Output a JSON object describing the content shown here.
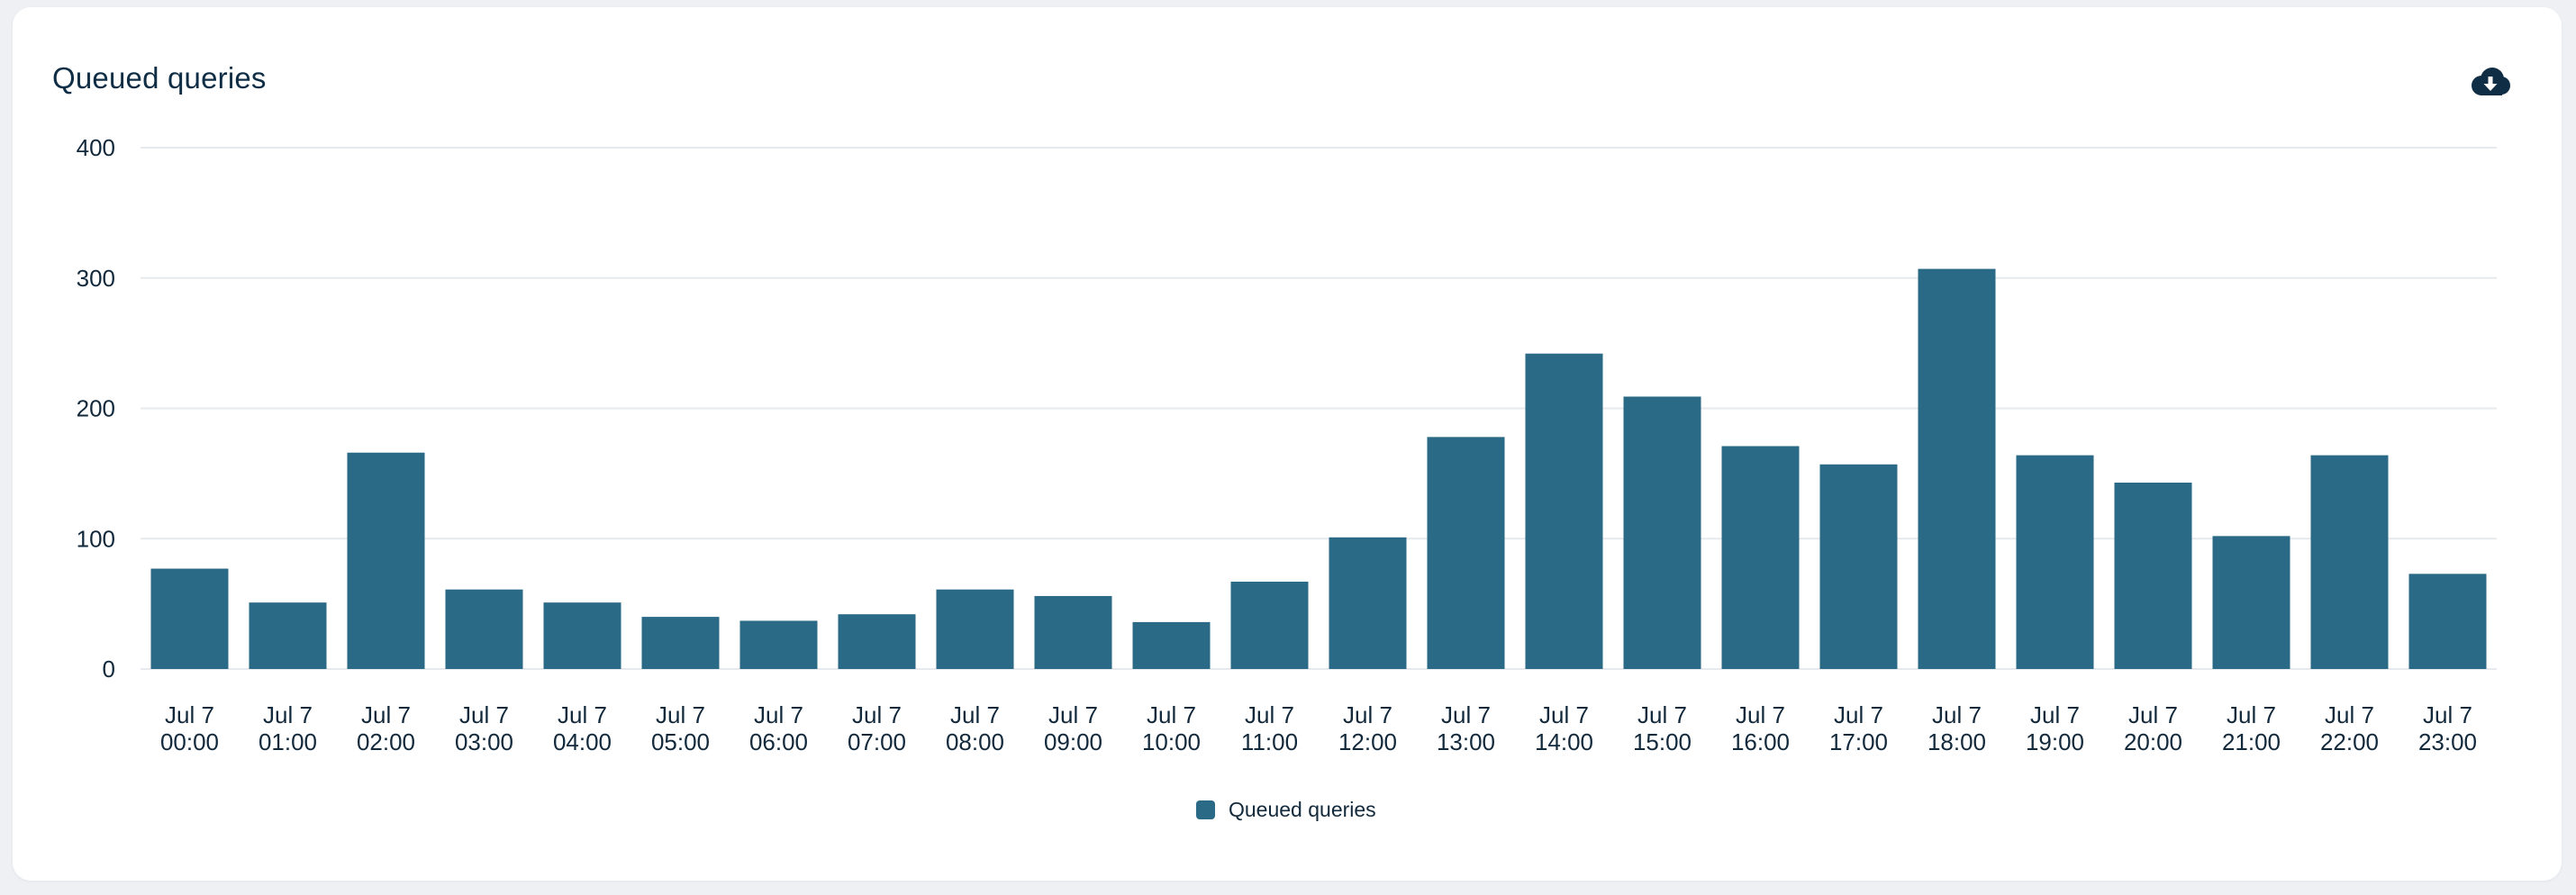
{
  "card": {
    "title": "Queued queries",
    "download_icon": "cloud-download-icon",
    "icon_color": "#0f2d45"
  },
  "chart_data": {
    "type": "bar",
    "title": "Queued queries",
    "xlabel": "",
    "ylabel": "",
    "ylim": [
      0,
      400
    ],
    "yticks": [
      0,
      100,
      200,
      300,
      400
    ],
    "grid": true,
    "legend_position": "bottom-center",
    "categories": [
      [
        "Jul 7",
        "00:00"
      ],
      [
        "Jul 7",
        "01:00"
      ],
      [
        "Jul 7",
        "02:00"
      ],
      [
        "Jul 7",
        "03:00"
      ],
      [
        "Jul 7",
        "04:00"
      ],
      [
        "Jul 7",
        "05:00"
      ],
      [
        "Jul 7",
        "06:00"
      ],
      [
        "Jul 7",
        "07:00"
      ],
      [
        "Jul 7",
        "08:00"
      ],
      [
        "Jul 7",
        "09:00"
      ],
      [
        "Jul 7",
        "10:00"
      ],
      [
        "Jul 7",
        "11:00"
      ],
      [
        "Jul 7",
        "12:00"
      ],
      [
        "Jul 7",
        "13:00"
      ],
      [
        "Jul 7",
        "14:00"
      ],
      [
        "Jul 7",
        "15:00"
      ],
      [
        "Jul 7",
        "16:00"
      ],
      [
        "Jul 7",
        "17:00"
      ],
      [
        "Jul 7",
        "18:00"
      ],
      [
        "Jul 7",
        "19:00"
      ],
      [
        "Jul 7",
        "20:00"
      ],
      [
        "Jul 7",
        "21:00"
      ],
      [
        "Jul 7",
        "22:00"
      ],
      [
        "Jul 7",
        "23:00"
      ]
    ],
    "series": [
      {
        "name": "Queued queries",
        "color": "#2a6a86",
        "values": [
          77,
          51,
          166,
          61,
          51,
          40,
          37,
          42,
          61,
          56,
          36,
          67,
          101,
          178,
          242,
          209,
          171,
          157,
          307,
          164,
          143,
          102,
          164,
          73
        ]
      }
    ]
  }
}
